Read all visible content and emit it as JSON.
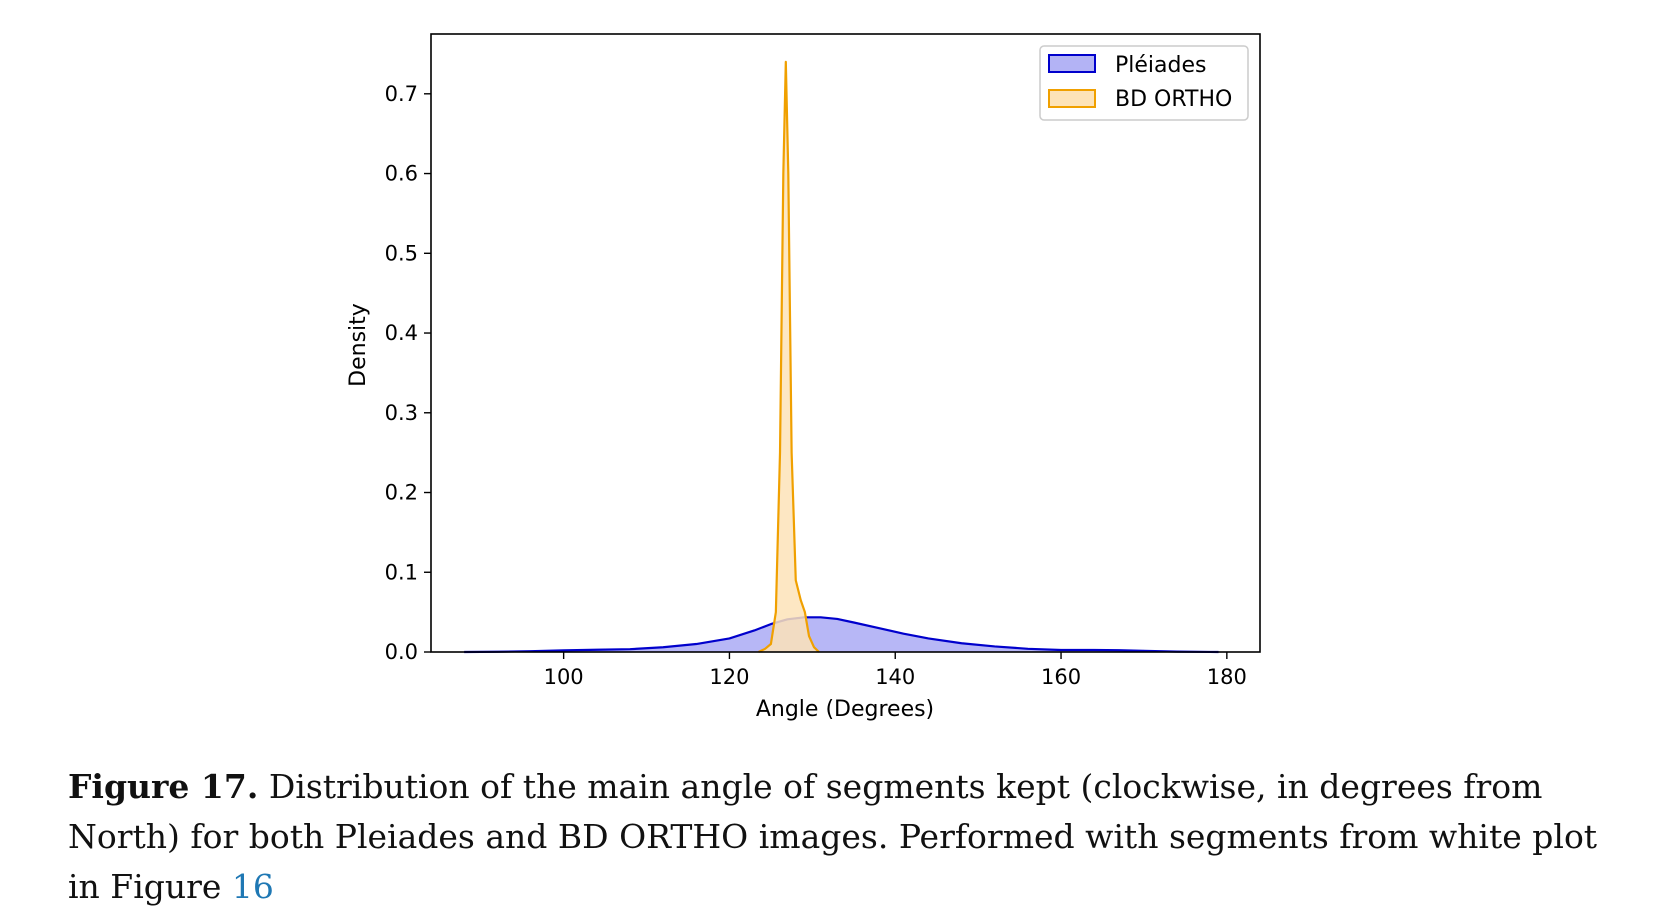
{
  "chart_data": {
    "type": "area",
    "xlabel": "Angle (Degrees)",
    "ylabel": "Density",
    "xlim": [
      84,
      184
    ],
    "ylim": [
      0,
      0.775
    ],
    "xticks": [
      100,
      120,
      140,
      160,
      180
    ],
    "yticks": [
      0.0,
      0.1,
      0.2,
      0.3,
      0.4,
      0.5,
      0.6,
      0.7
    ],
    "grid": false,
    "legend_position": "top-right",
    "series": [
      {
        "name": "Pléiades",
        "color": "#0000cc",
        "fill": "#b3b3f5",
        "points": [
          [
            88,
            0
          ],
          [
            92,
            0.0003
          ],
          [
            96,
            0.001
          ],
          [
            100,
            0.002
          ],
          [
            104,
            0.0028
          ],
          [
            108,
            0.0035
          ],
          [
            112,
            0.006
          ],
          [
            116,
            0.01
          ],
          [
            120,
            0.017
          ],
          [
            123,
            0.027
          ],
          [
            125,
            0.035
          ],
          [
            127,
            0.041
          ],
          [
            129,
            0.0435
          ],
          [
            131,
            0.0435
          ],
          [
            133,
            0.0415
          ],
          [
            135,
            0.037
          ],
          [
            138,
            0.03
          ],
          [
            141,
            0.023
          ],
          [
            144,
            0.017
          ],
          [
            148,
            0.011
          ],
          [
            152,
            0.007
          ],
          [
            156,
            0.004
          ],
          [
            160,
            0.0025
          ],
          [
            164,
            0.0025
          ],
          [
            167,
            0.0022
          ],
          [
            170,
            0.0015
          ],
          [
            174,
            0.0005
          ],
          [
            178,
            0.0001
          ],
          [
            179,
            0
          ]
        ]
      },
      {
        "name": "BD ORTHO",
        "color": "#f0a000",
        "fill": "#fde3b8",
        "points": [
          [
            123.5,
            0
          ],
          [
            124.3,
            0.004
          ],
          [
            125,
            0.01
          ],
          [
            125.6,
            0.05
          ],
          [
            126.1,
            0.25
          ],
          [
            126.5,
            0.6
          ],
          [
            126.8,
            0.74
          ],
          [
            127.1,
            0.6
          ],
          [
            127.5,
            0.25
          ],
          [
            128,
            0.09
          ],
          [
            128.6,
            0.065
          ],
          [
            129.1,
            0.05
          ],
          [
            129.6,
            0.02
          ],
          [
            130.2,
            0.006
          ],
          [
            130.8,
            0
          ]
        ]
      }
    ]
  },
  "caption": {
    "label": "Figure 17.",
    "text": " Distribution of the main angle of segments kept (clockwise, in degrees from North) for both Pleiades and BD ORTHO images. Performed with segments from white plot in Figure ",
    "ref": "16"
  }
}
